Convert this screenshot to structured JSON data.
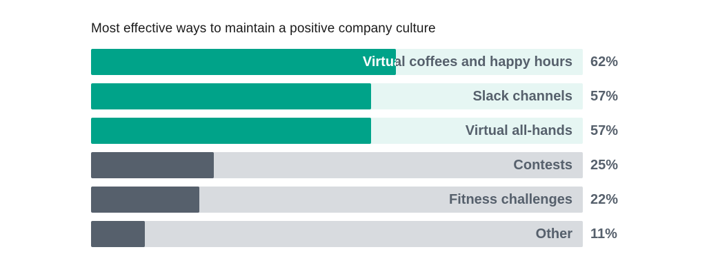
{
  "chart_data": {
    "type": "bar",
    "orientation": "horizontal",
    "title": "Most effective ways to maintain a positive company culture",
    "categories": [
      "Virtual coffees and happy hours",
      "Slack channels",
      "Virtual all-hands",
      "Contests",
      "Fitness challenges",
      "Other"
    ],
    "values": [
      62,
      57,
      57,
      25,
      22,
      11
    ],
    "value_labels": [
      "62%",
      "57%",
      "57%",
      "25%",
      "22%",
      "11%"
    ],
    "unit": "%",
    "xlim": [
      0,
      100
    ],
    "grid": false,
    "legend": "none",
    "highlight_count": 3
  },
  "colors": {
    "highlight_fill": "#00a389",
    "highlight_track": "#e6f6f3",
    "base_fill": "#56606c",
    "base_track": "#d8dbdf",
    "label_text": "#56606c",
    "label_text_on_fill": "#ffffff"
  }
}
